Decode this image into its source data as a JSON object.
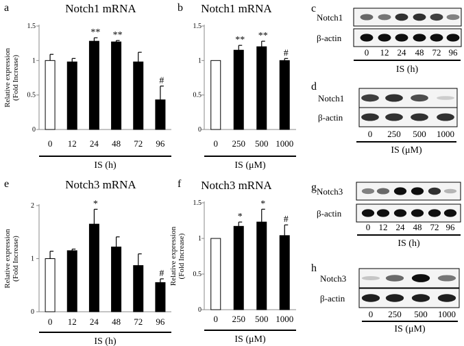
{
  "chart_data": [
    {
      "panel": "a",
      "type": "bar",
      "title": "Notch1 mRNA",
      "ylabel": "Relative expression",
      "ylabel2": "(Fold Increase)",
      "xlabel": "IS (h)",
      "ylim": [
        0,
        1.5
      ],
      "yticks": [
        "0",
        "0.5",
        "1",
        "1.5"
      ],
      "categories": [
        "0",
        "12",
        "24",
        "48",
        "72",
        "96"
      ],
      "values": [
        1.0,
        0.98,
        1.28,
        1.27,
        0.98,
        0.43
      ],
      "errors": [
        0.09,
        0.05,
        0.05,
        0.02,
        0.14,
        0.2
      ],
      "annotations": [
        "",
        "",
        "**",
        "**",
        "",
        "#"
      ],
      "bar_colors": [
        "#ffffff",
        "#000000",
        "#000000",
        "#000000",
        "#000000",
        "#000000"
      ]
    },
    {
      "panel": "b",
      "type": "bar",
      "title": "Notch1 mRNA",
      "xlabel": "IS (μM)",
      "ylim": [
        0,
        1.5
      ],
      "yticks": [
        "0",
        "0.5",
        "1",
        "1.5"
      ],
      "categories": [
        "0",
        "250",
        "500",
        "1000"
      ],
      "values": [
        1.0,
        1.15,
        1.2,
        1.0
      ],
      "errors": [
        0.0,
        0.07,
        0.08,
        0.03
      ],
      "annotations": [
        "",
        "**",
        "**",
        "#"
      ],
      "bar_colors": [
        "#ffffff",
        "#000000",
        "#000000",
        "#000000"
      ]
    },
    {
      "panel": "e",
      "type": "bar",
      "title": "Notch3 mRNA",
      "ylabel": "Relative expression",
      "ylabel2": "(Fold Increase)",
      "xlabel": "IS (h)",
      "ylim": [
        0,
        2
      ],
      "yticks": [
        "0",
        "1",
        "2"
      ],
      "categories": [
        "0",
        "12",
        "24",
        "48",
        "72",
        "96"
      ],
      "values": [
        1.0,
        1.15,
        1.65,
        1.22,
        0.87,
        0.55
      ],
      "errors": [
        0.14,
        0.03,
        0.28,
        0.19,
        0.22,
        0.07
      ],
      "annotations": [
        "",
        "",
        "*",
        "",
        "",
        "#"
      ],
      "bar_colors": [
        "#ffffff",
        "#000000",
        "#000000",
        "#000000",
        "#000000",
        "#000000"
      ]
    },
    {
      "panel": "f",
      "type": "bar",
      "title": "Notch3 mRNA",
      "ylabel": "Relative expression",
      "ylabel2": "(Fold Increase)",
      "xlabel": "IS (μM)",
      "ylim": [
        0,
        1.5
      ],
      "yticks": [
        "0",
        "0.5",
        "1",
        "1.5"
      ],
      "categories": [
        "0",
        "250",
        "500",
        "1000"
      ],
      "values": [
        1.0,
        1.17,
        1.23,
        1.04
      ],
      "errors": [
        0.0,
        0.06,
        0.18,
        0.15
      ],
      "annotations": [
        "",
        "*",
        "*",
        "#"
      ],
      "bar_colors": [
        "#ffffff",
        "#000000",
        "#000000",
        "#000000"
      ]
    }
  ],
  "blots": [
    {
      "panel": "c",
      "rows": [
        "Notch1",
        "β-actin"
      ],
      "lanes": [
        "0",
        "12",
        "24",
        "48",
        "72",
        "96"
      ],
      "xlabel": "IS (h)",
      "intensity": [
        [
          0.7,
          0.65,
          0.9,
          0.9,
          0.85,
          0.6
        ],
        [
          1,
          1,
          1,
          1,
          1,
          1
        ]
      ]
    },
    {
      "panel": "d",
      "rows": [
        "Notch1",
        "β-actin"
      ],
      "lanes": [
        "0",
        "250",
        "500",
        "1000"
      ],
      "xlabel": "IS (μM)",
      "intensity": [
        [
          0.85,
          0.9,
          0.8,
          0.2
        ],
        [
          0.9,
          0.9,
          0.9,
          0.9
        ]
      ]
    },
    {
      "panel": "g",
      "rows": [
        "Notch3",
        "β-actin"
      ],
      "lanes": [
        "0",
        "12",
        "24",
        "48",
        "72",
        "96"
      ],
      "xlabel": "IS (h)",
      "intensity": [
        [
          0.6,
          0.7,
          1,
          1,
          0.9,
          0.35
        ],
        [
          1,
          1,
          1,
          1,
          1,
          1
        ]
      ]
    },
    {
      "panel": "h",
      "rows": [
        "Notch3",
        "β-actin"
      ],
      "lanes": [
        "0",
        "250",
        "500",
        "1000"
      ],
      "xlabel": "IS (μM)",
      "intensity": [
        [
          0.25,
          0.7,
          1,
          0.65
        ],
        [
          0.95,
          0.95,
          0.95,
          0.95
        ]
      ]
    }
  ],
  "colors": {
    "ink": "#000000",
    "open_bar": "#ffffff"
  }
}
